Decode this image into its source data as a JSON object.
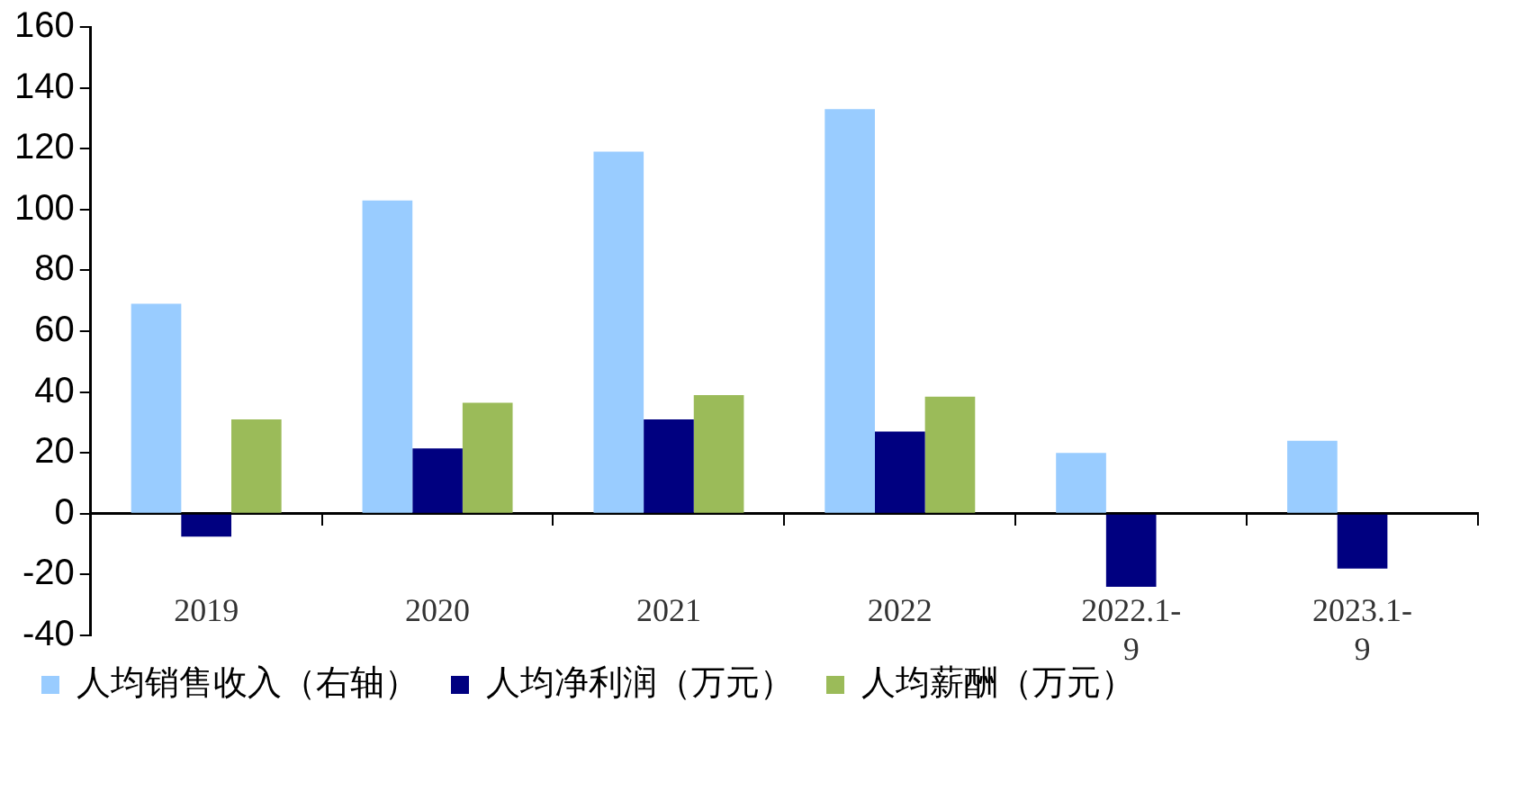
{
  "chart_data": {
    "type": "bar",
    "categories": [
      "2019",
      "2020",
      "2021",
      "2022",
      "2022.1-9",
      "2023.1-9"
    ],
    "series": [
      {
        "name": "人均销售收入（右轴）",
        "color": "#99ccff",
        "values": [
          69,
          103,
          119,
          133,
          20,
          24
        ]
      },
      {
        "name": "人均净利润（万元）",
        "color": "#000080",
        "values": [
          -7.5,
          21.5,
          31,
          27,
          -24,
          -18
        ]
      },
      {
        "name": "人均薪酬（万元）",
        "color": "#9bbb59",
        "values": [
          31,
          36.5,
          39,
          38.5,
          null,
          null
        ]
      }
    ],
    "ylim": [
      -40,
      160
    ],
    "yticks": [
      -40,
      -20,
      0,
      20,
      40,
      60,
      80,
      100,
      120,
      140,
      160
    ],
    "grid": false,
    "legend": "bottom"
  }
}
